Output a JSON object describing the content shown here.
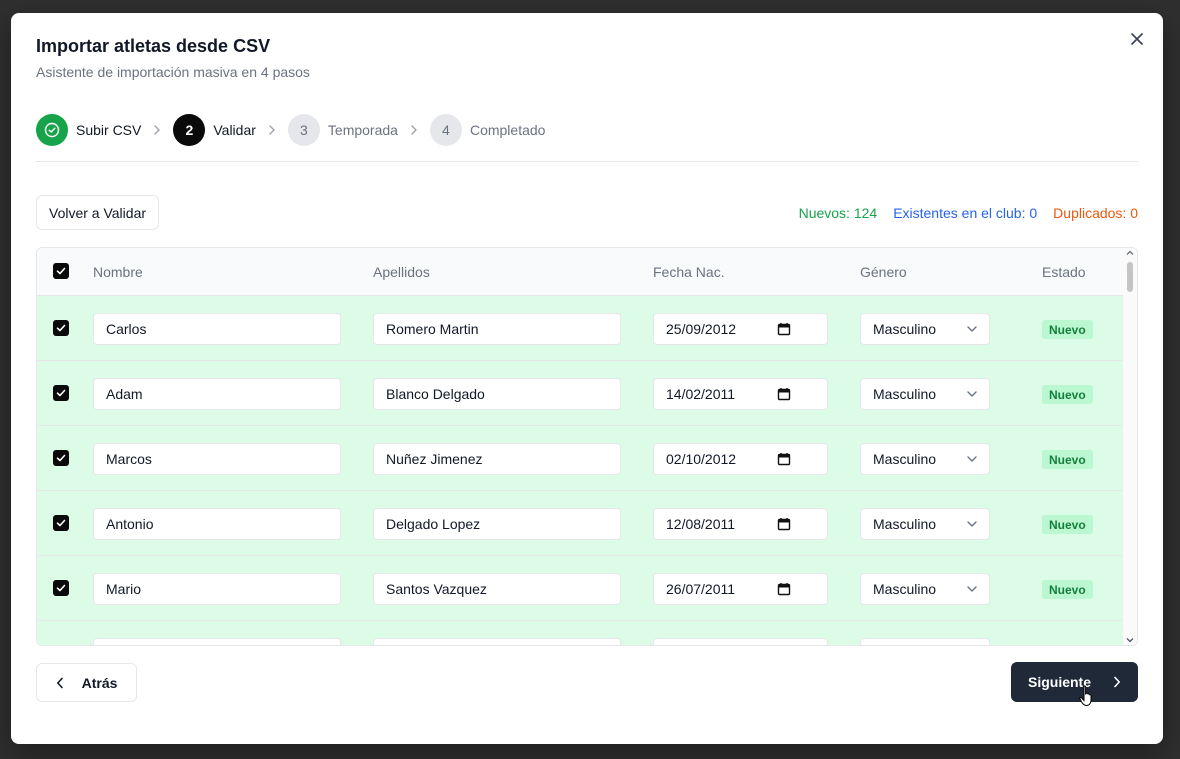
{
  "dialog": {
    "title": "Importar atletas desde CSV",
    "subtitle": "Asistente de importación masiva en 4 pasos"
  },
  "steps": [
    {
      "number": "",
      "label": "Subir CSV",
      "state": "done"
    },
    {
      "number": "2",
      "label": "Validar",
      "state": "active"
    },
    {
      "number": "3",
      "label": "Temporada",
      "state": "pending"
    },
    {
      "number": "4",
      "label": "Completado",
      "state": "pending"
    }
  ],
  "toolbar": {
    "back_validate_label": "Volver a Validar"
  },
  "stats": {
    "new": "Nuevos: 124",
    "existing": "Existentes en el club: 0",
    "duplicates": "Duplicados: 0"
  },
  "table": {
    "headers": {
      "name": "Nombre",
      "last": "Apellidos",
      "birth": "Fecha Nac.",
      "gender": "Género",
      "status": "Estado"
    },
    "rows": [
      {
        "name": "Carlos",
        "last": "Romero Martin",
        "birth": "25/09/2012",
        "gender": "Masculino",
        "status": "Nuevo"
      },
      {
        "name": "Adam",
        "last": "Blanco Delgado",
        "birth": "14/02/2011",
        "gender": "Masculino",
        "status": "Nuevo"
      },
      {
        "name": "Marcos",
        "last": "Nuñez Jimenez",
        "birth": "02/10/2012",
        "gender": "Masculino",
        "status": "Nuevo"
      },
      {
        "name": "Antonio",
        "last": "Delgado Lopez",
        "birth": "12/08/2011",
        "gender": "Masculino",
        "status": "Nuevo"
      },
      {
        "name": "Mario",
        "last": "Santos Vazquez",
        "birth": "26/07/2011",
        "gender": "Masculino",
        "status": "Nuevo"
      },
      {
        "name": "",
        "last": "",
        "birth": "",
        "gender": "",
        "status": ""
      }
    ]
  },
  "footer": {
    "back_label": "Atrás",
    "next_label": "Siguiente"
  },
  "colors": {
    "success": "#16a34a",
    "info": "#2563eb",
    "warning": "#ea580c",
    "row_bg": "#dcfce7",
    "primary_button": "#1f2937"
  },
  "icons": {
    "close": "close-icon",
    "check_circle": "check-circle-icon",
    "chevron_right": "chevron-right-icon",
    "calendar": "calendar-icon",
    "chevron_down": "chevron-down-icon",
    "chevron_left": "chevron-left-icon",
    "cursor": "hand-cursor-icon"
  }
}
